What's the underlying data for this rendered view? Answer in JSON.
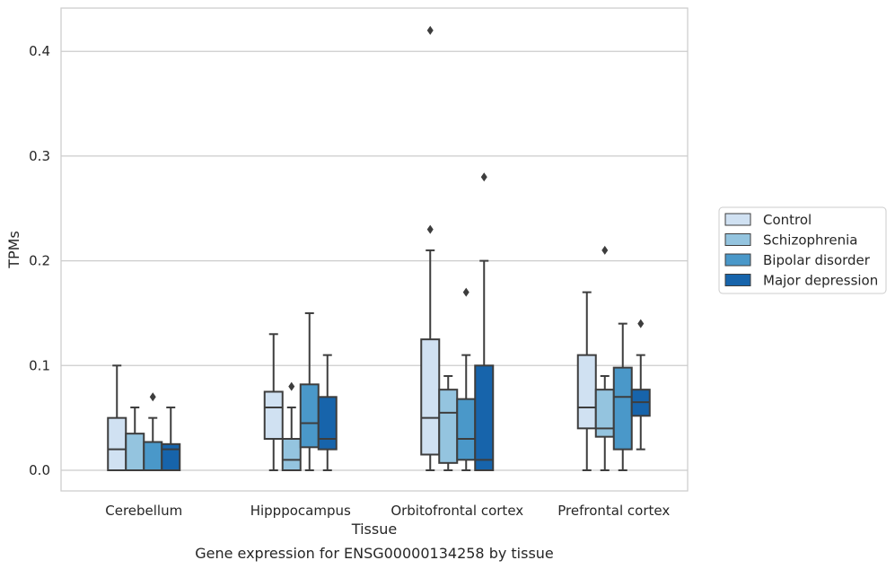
{
  "chart_data": {
    "type": "box",
    "title": "",
    "xlabel": "Tissue",
    "ylabel": "TPMs",
    "caption": "Gene expression for ENSG00000134258 by tissue",
    "ylim": [
      -0.02,
      0.44
    ],
    "yticks": [
      0.0,
      0.1,
      0.2,
      0.3,
      0.4
    ],
    "ytick_labels": [
      "0.0",
      "0.1",
      "0.2",
      "0.3",
      "0.4"
    ],
    "grid": true,
    "legend_position": "right",
    "categories": [
      "Cerebellum",
      "Hipppocampus",
      "Orbitofrontal cortex",
      "Prefrontal cortex"
    ],
    "series": [
      {
        "name": "Control",
        "color": "#d0e1f2",
        "boxes": [
          {
            "whislo": 0.0,
            "q1": 0.0,
            "med": 0.02,
            "q3": 0.05,
            "whishi": 0.1,
            "fliers": []
          },
          {
            "whislo": 0.0,
            "q1": 0.03,
            "med": 0.06,
            "q3": 0.075,
            "whishi": 0.13,
            "fliers": []
          },
          {
            "whislo": 0.0,
            "q1": 0.015,
            "med": 0.05,
            "q3": 0.125,
            "whishi": 0.21,
            "fliers": [
              0.23,
              0.42
            ]
          },
          {
            "whislo": 0.0,
            "q1": 0.04,
            "med": 0.06,
            "q3": 0.11,
            "whishi": 0.17,
            "fliers": []
          }
        ]
      },
      {
        "name": "Schizophrenia",
        "color": "#94c4df",
        "boxes": [
          {
            "whislo": 0.0,
            "q1": 0.0,
            "med": 0.0,
            "q3": 0.035,
            "whishi": 0.06,
            "fliers": []
          },
          {
            "whislo": 0.0,
            "q1": 0.0,
            "med": 0.01,
            "q3": 0.03,
            "whishi": 0.06,
            "fliers": [
              0.08
            ]
          },
          {
            "whislo": 0.0,
            "q1": 0.007,
            "med": 0.055,
            "q3": 0.077,
            "whishi": 0.09,
            "fliers": []
          },
          {
            "whislo": 0.0,
            "q1": 0.032,
            "med": 0.04,
            "q3": 0.077,
            "whishi": 0.09,
            "fliers": [
              0.21
            ]
          }
        ]
      },
      {
        "name": "Bipolar disorder",
        "color": "#4a98c9",
        "boxes": [
          {
            "whislo": 0.0,
            "q1": 0.0,
            "med": 0.0,
            "q3": 0.027,
            "whishi": 0.05,
            "fliers": [
              0.07
            ]
          },
          {
            "whislo": 0.0,
            "q1": 0.022,
            "med": 0.045,
            "q3": 0.082,
            "whishi": 0.15,
            "fliers": []
          },
          {
            "whislo": 0.0,
            "q1": 0.01,
            "med": 0.03,
            "q3": 0.068,
            "whishi": 0.11,
            "fliers": [
              0.17
            ]
          },
          {
            "whislo": 0.0,
            "q1": 0.02,
            "med": 0.07,
            "q3": 0.098,
            "whishi": 0.14,
            "fliers": []
          }
        ]
      },
      {
        "name": "Major depression",
        "color": "#1764ab",
        "boxes": [
          {
            "whislo": 0.0,
            "q1": 0.0,
            "med": 0.02,
            "q3": 0.025,
            "whishi": 0.06,
            "fliers": []
          },
          {
            "whislo": 0.0,
            "q1": 0.02,
            "med": 0.03,
            "q3": 0.07,
            "whishi": 0.11,
            "fliers": []
          },
          {
            "whislo": 0.0,
            "q1": 0.0,
            "med": 0.01,
            "q3": 0.1,
            "whishi": 0.2,
            "fliers": [
              0.28
            ]
          },
          {
            "whislo": 0.02,
            "q1": 0.052,
            "med": 0.065,
            "q3": 0.077,
            "whishi": 0.11,
            "fliers": [
              0.14
            ]
          }
        ]
      }
    ]
  }
}
